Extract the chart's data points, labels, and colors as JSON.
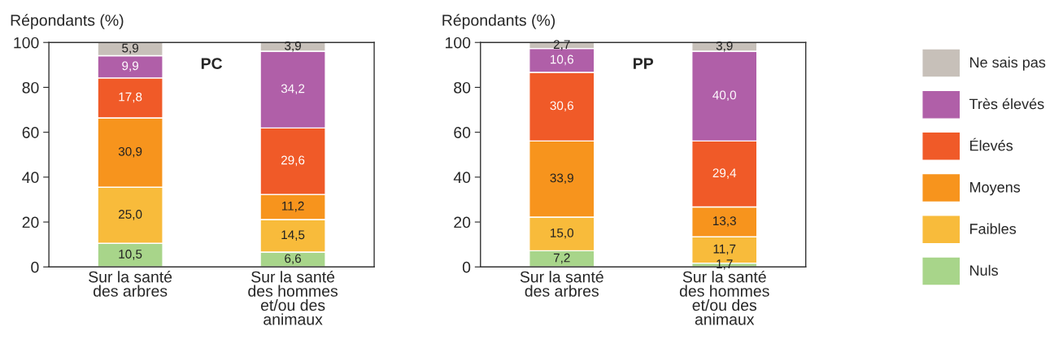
{
  "chart_data": [
    {
      "type": "bar",
      "stacked": true,
      "ylabel": "Répondants (%)",
      "annotations": [
        "PC"
      ],
      "categories": [
        "Sur la santé\ndes arbres",
        "Sur la santé\ndes hommes\net/ou des\nanimaux"
      ],
      "ylim": [
        0,
        100
      ],
      "yticks": [
        0,
        20,
        40,
        60,
        80,
        100
      ],
      "grid": false,
      "series": [
        {
          "color": "#a8d58a",
          "values": [
            10.5,
            6.6
          ],
          "value_labels": [
            "10,5",
            "6,6"
          ]
        },
        {
          "color": "#f8bb3b",
          "values": [
            25.0,
            14.5
          ],
          "value_labels": [
            "25,0",
            "14,5"
          ]
        },
        {
          "color": "#f7941d",
          "values": [
            30.9,
            11.2
          ],
          "value_labels": [
            "30,9",
            "11,2"
          ]
        },
        {
          "color": "#f05a28",
          "values": [
            17.8,
            29.6
          ],
          "value_labels": [
            "17,8",
            "29,6"
          ]
        },
        {
          "color": "#b05fa8",
          "values": [
            9.9,
            34.2
          ],
          "value_labels": [
            "9,9",
            "34,2"
          ]
        },
        {
          "color": "#c7c0b9",
          "values": [
            5.9,
            3.9
          ],
          "value_labels": [
            "5,9",
            "3,9"
          ]
        }
      ]
    },
    {
      "type": "bar",
      "stacked": true,
      "ylabel": "Répondants (%)",
      "annotations": [
        "PP"
      ],
      "categories": [
        "Sur la santé\ndes arbres",
        "Sur la santé\ndes hommes\net/ou des\nanimaux"
      ],
      "ylim": [
        0,
        100
      ],
      "yticks": [
        0,
        20,
        40,
        60,
        80,
        100
      ],
      "grid": false,
      "legend": "right",
      "series": [
        {
          "name": "Nuls",
          "color": "#a8d58a",
          "values": [
            7.2,
            1.7
          ],
          "value_labels": [
            "7,2",
            "1,7"
          ]
        },
        {
          "name": "Faibles",
          "color": "#f8bb3b",
          "values": [
            15.0,
            11.7
          ],
          "value_labels": [
            "15,0",
            "11,7"
          ]
        },
        {
          "name": "Moyens",
          "color": "#f7941d",
          "values": [
            33.9,
            13.3
          ],
          "value_labels": [
            "33,9",
            "13,3"
          ]
        },
        {
          "name": "Élevés",
          "color": "#f05a28",
          "values": [
            30.6,
            29.4
          ],
          "value_labels": [
            "30,6",
            "29,4"
          ]
        },
        {
          "name": "Très élevés",
          "color": "#b05fa8",
          "values": [
            10.6,
            40.0
          ],
          "value_labels": [
            "10,6",
            "40,0"
          ]
        },
        {
          "name": "Ne sais pas",
          "color": "#c7c0b9",
          "values": [
            2.7,
            3.9
          ],
          "value_labels": [
            "2,7",
            "3,9"
          ]
        }
      ]
    }
  ]
}
